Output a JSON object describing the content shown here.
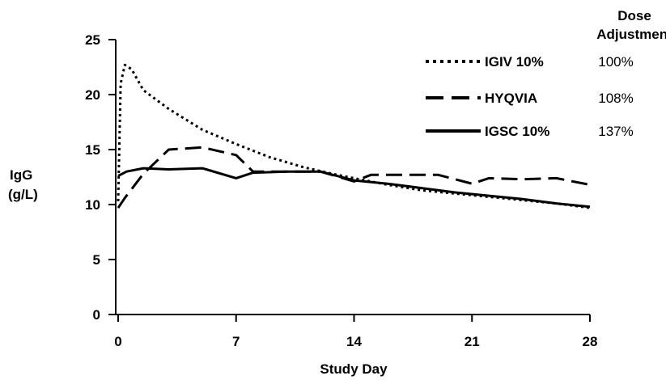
{
  "chart_data": {
    "type": "line",
    "xlabel": "Study Day",
    "ylabel_line1": "IgG",
    "ylabel_line2": "(g/L)",
    "xlim": [
      0,
      28
    ],
    "ylim": [
      0,
      25
    ],
    "xticks": [
      0,
      7,
      14,
      21,
      28
    ],
    "yticks": [
      0,
      5,
      10,
      15,
      20,
      25
    ],
    "xtick_labels": [
      "0",
      "7",
      "14",
      "21",
      "28"
    ],
    "ytick_labels": [
      "0",
      "5",
      "10",
      "15",
      "20",
      "25"
    ],
    "grid": false,
    "legend_header_line1": "Dose",
    "legend_header_line2": "Adjustment",
    "legend_position": "top-right",
    "series": [
      {
        "name": "IGIV 10%",
        "dose": "100%",
        "style": "dotted",
        "x": [
          0,
          0.15,
          0.4,
          0.8,
          1.5,
          3,
          5,
          7,
          9,
          11,
          13,
          14,
          16,
          18,
          20,
          22,
          24,
          26,
          28
        ],
        "y": [
          10.3,
          21.0,
          22.7,
          22.3,
          20.4,
          18.7,
          16.8,
          15.5,
          14.3,
          13.4,
          12.7,
          12.4,
          11.8,
          11.3,
          11.0,
          10.7,
          10.4,
          10.1,
          9.7
        ]
      },
      {
        "name": "HYQVIA",
        "dose": "108%",
        "style": "dashed",
        "x": [
          0,
          0.4,
          1.5,
          3,
          5,
          7,
          8,
          9,
          12,
          14,
          15,
          19,
          21,
          22,
          24,
          26,
          28
        ],
        "y": [
          9.7,
          10.6,
          12.8,
          15.0,
          15.2,
          14.5,
          13.0,
          13.0,
          13.0,
          12.1,
          12.7,
          12.7,
          11.9,
          12.4,
          12.3,
          12.4,
          11.8
        ]
      },
      {
        "name": "IGSC 10%",
        "dose": "137%",
        "style": "solid",
        "x": [
          0,
          0.5,
          1.5,
          3,
          5,
          7,
          8,
          10,
          12,
          14,
          16,
          18,
          20,
          22,
          24,
          26,
          28
        ],
        "y": [
          12.6,
          13.0,
          13.3,
          13.2,
          13.3,
          12.4,
          12.9,
          13.0,
          13.0,
          12.2,
          11.9,
          11.5,
          11.1,
          10.8,
          10.5,
          10.1,
          9.8
        ]
      }
    ]
  }
}
